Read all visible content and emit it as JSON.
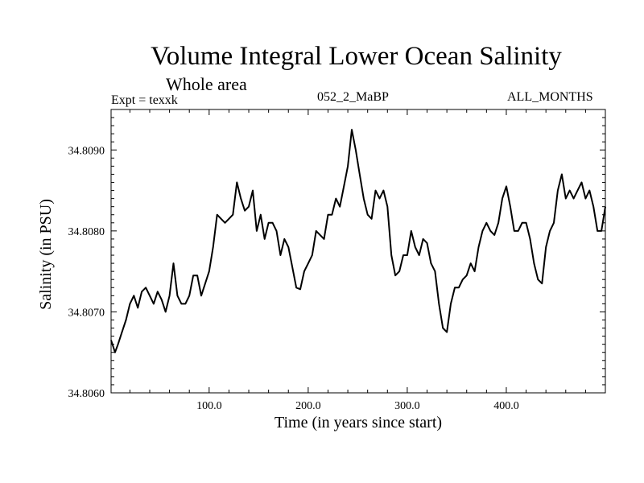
{
  "chart_data": {
    "type": "line",
    "title": "Volume Integral Lower Ocean Salinity",
    "subtitle": "Whole area",
    "experiment_label": "Expt = texxk",
    "run_label": "052_2_MaBP",
    "period_label": "ALL_MONTHS",
    "xlabel": "Time (in years since start)",
    "ylabel": "Salinity (in PSU)",
    "xlim": [
      1,
      500
    ],
    "ylim": [
      34.806,
      34.8095
    ],
    "xticks": [
      100,
      200,
      300,
      400
    ],
    "xtick_labels": [
      "100.0",
      "200.0",
      "300.0",
      "400.0"
    ],
    "yticks": [
      34.806,
      34.807,
      34.808,
      34.809
    ],
    "ytick_labels": [
      "34.8060",
      "34.8070",
      "34.8080",
      "34.8090"
    ],
    "grid": false,
    "series": [
      {
        "name": "Salinity",
        "x": [
          1,
          5,
          8,
          12,
          16,
          20,
          24,
          28,
          32,
          36,
          40,
          44,
          48,
          52,
          56,
          60,
          64,
          68,
          72,
          76,
          80,
          84,
          88,
          92,
          96,
          100,
          104,
          108,
          112,
          116,
          120,
          124,
          128,
          132,
          136,
          140,
          144,
          148,
          152,
          156,
          160,
          164,
          168,
          172,
          176,
          180,
          184,
          188,
          192,
          196,
          200,
          204,
          208,
          212,
          216,
          220,
          224,
          228,
          232,
          236,
          240,
          244,
          248,
          252,
          256,
          260,
          264,
          268,
          272,
          276,
          280,
          284,
          288,
          292,
          296,
          300,
          304,
          308,
          312,
          316,
          320,
          324,
          328,
          332,
          336,
          340,
          344,
          348,
          352,
          356,
          360,
          364,
          368,
          372,
          376,
          380,
          384,
          388,
          392,
          396,
          400,
          404,
          408,
          412,
          416,
          420,
          424,
          428,
          432,
          436,
          440,
          444,
          448,
          452,
          456,
          460,
          464,
          468,
          472,
          476,
          480,
          484,
          488,
          492,
          496,
          500
        ],
        "values": [
          34.80665,
          34.8065,
          34.8066,
          34.80675,
          34.8069,
          34.8071,
          34.8072,
          34.80705,
          34.80725,
          34.8073,
          34.8072,
          34.8071,
          34.80725,
          34.80715,
          34.807,
          34.8072,
          34.8076,
          34.8072,
          34.8071,
          34.8071,
          34.8072,
          34.80745,
          34.80745,
          34.8072,
          34.80735,
          34.8075,
          34.8078,
          34.8082,
          34.80815,
          34.8081,
          34.80815,
          34.8082,
          34.8086,
          34.8084,
          34.80825,
          34.8083,
          34.8085,
          34.808,
          34.8082,
          34.8079,
          34.8081,
          34.8081,
          34.808,
          34.8077,
          34.8079,
          34.8078,
          34.80755,
          34.8073,
          34.80728,
          34.8075,
          34.8076,
          34.8077,
          34.808,
          34.80795,
          34.8079,
          34.8082,
          34.8082,
          34.8084,
          34.8083,
          34.80855,
          34.8088,
          34.80925,
          34.809,
          34.8087,
          34.8084,
          34.8082,
          34.80815,
          34.8085,
          34.8084,
          34.8085,
          34.8083,
          34.8077,
          34.80745,
          34.8075,
          34.8077,
          34.8077,
          34.808,
          34.8078,
          34.8077,
          34.8079,
          34.80785,
          34.8076,
          34.8075,
          34.8071,
          34.8068,
          34.80675,
          34.8071,
          34.8073,
          34.8073,
          34.8074,
          34.80745,
          34.8076,
          34.8075,
          34.8078,
          34.808,
          34.8081,
          34.808,
          34.80795,
          34.8081,
          34.8084,
          34.80855,
          34.8083,
          34.808,
          34.808,
          34.8081,
          34.8081,
          34.8079,
          34.8076,
          34.8074,
          34.80735,
          34.8078,
          34.808,
          34.8081,
          34.8085,
          34.8087,
          34.8084,
          34.8085,
          34.8084,
          34.8085,
          34.8086,
          34.8084,
          34.8085,
          34.8083,
          34.808,
          34.808,
          34.8083
        ]
      }
    ]
  }
}
